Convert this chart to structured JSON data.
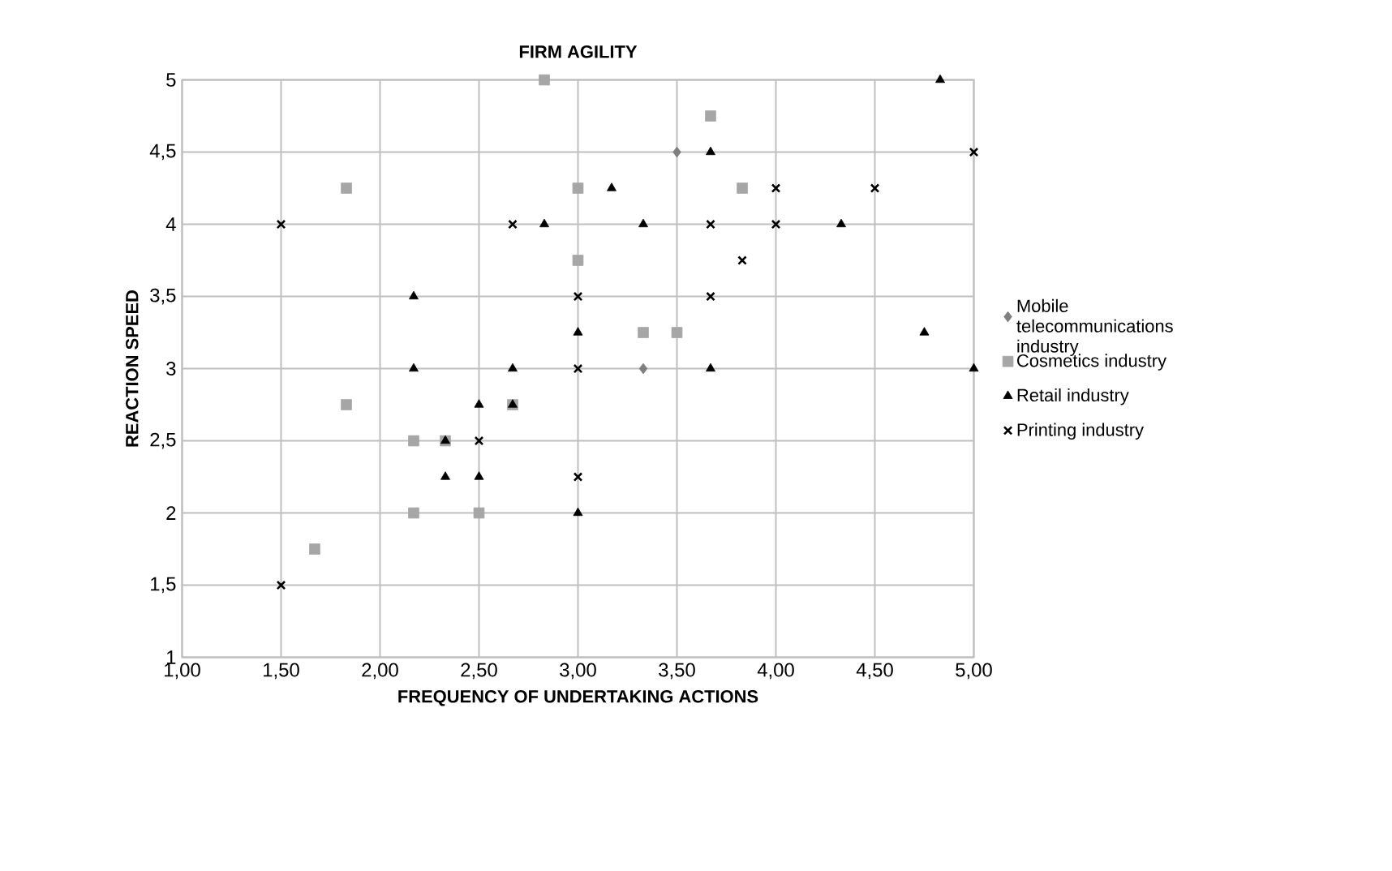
{
  "chart_data": {
    "type": "scatter",
    "title": "FIRM AGILITY",
    "xlabel": "FREQUENCY OF UNDERTAKING ACTIONS",
    "ylabel": "REACTION SPEED",
    "xlim": [
      1,
      5
    ],
    "ylim": [
      1,
      5
    ],
    "xticks": [
      {
        "value": 1,
        "label": "1,00"
      },
      {
        "value": 1.5,
        "label": "1,50"
      },
      {
        "value": 2,
        "label": "2,00"
      },
      {
        "value": 2.5,
        "label": "2,50"
      },
      {
        "value": 3,
        "label": "3,00"
      },
      {
        "value": 3.5,
        "label": "3,50"
      },
      {
        "value": 4,
        "label": "4,00"
      },
      {
        "value": 4.5,
        "label": "4,50"
      },
      {
        "value": 5,
        "label": "5,00"
      }
    ],
    "yticks": [
      1,
      {
        "value": 1.5,
        "label": "1,5"
      },
      2,
      {
        "value": 2.5,
        "label": "2,5"
      },
      3,
      {
        "value": 3.5,
        "label": "3,5"
      },
      4,
      {
        "value": 4.5,
        "label": "4,5"
      },
      5
    ],
    "grid": true,
    "legend": "right",
    "series": [
      {
        "name": "Mobile telecommunications industry",
        "color": "#7f7f7f",
        "marker": "diamond",
        "x": [
          3.5,
          3.33
        ],
        "values": [
          4.5,
          3
        ]
      },
      {
        "name": "Cosmetics industry",
        "color": "#a6a6a6",
        "marker": "square",
        "x": [
          1.83,
          2.83,
          3.67,
          3.0,
          3.83,
          3.0,
          1.83,
          2.67,
          2.17,
          2.33,
          2.17,
          2.5,
          1.67,
          3.33,
          3.5
        ],
        "values": [
          4.25,
          5,
          4.75,
          4.25,
          4.25,
          3.75,
          2.75,
          2.75,
          2.5,
          2.5,
          2,
          2,
          1.75,
          3.25,
          3.25
        ]
      },
      {
        "name": "Retail industry",
        "color": "#000000",
        "marker": "triangle",
        "x": [
          2.17,
          2.83,
          4.83,
          3.67,
          3.17,
          3.33,
          4.33,
          2.17,
          2.67,
          2.5,
          2.67,
          2.33,
          2.33,
          2.5,
          3.0,
          4.75,
          3.67,
          5.0,
          3.0
        ],
        "values": [
          3.5,
          4,
          5,
          4.5,
          4.25,
          4,
          4,
          3,
          3,
          2.75,
          2.75,
          2.5,
          2.25,
          2.25,
          3.25,
          3.25,
          3,
          3,
          2
        ]
      },
      {
        "name": "Printing industry",
        "color": "#000000",
        "marker": "cross",
        "x": [
          1.5,
          2.67,
          5.0,
          4.0,
          4.5,
          3.67,
          4.0,
          3.83,
          3.0,
          3.67,
          2.5,
          1.5,
          3.0,
          3.0
        ],
        "values": [
          4,
          4,
          4.5,
          4.25,
          4.25,
          4,
          4,
          3.75,
          3.5,
          3.5,
          2.5,
          1.5,
          3,
          2.25
        ]
      }
    ]
  }
}
